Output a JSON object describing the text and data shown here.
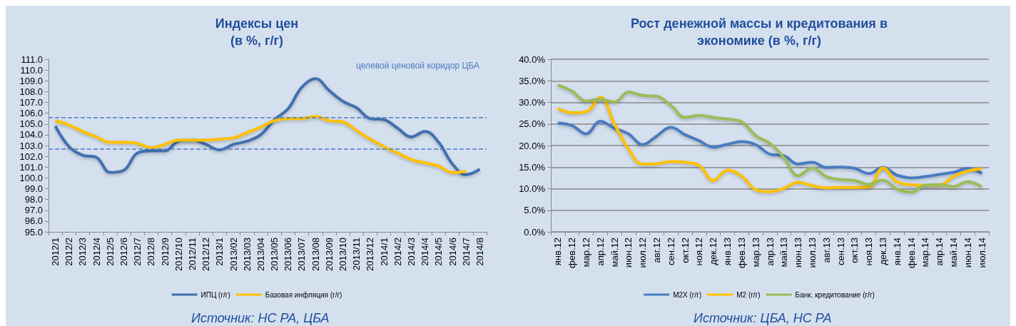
{
  "chart_data": [
    {
      "type": "line",
      "title": "Индексы цен\n(в %, г/г)",
      "categories": [
        "2012/1",
        "2012/2",
        "2012/3",
        "2012/4",
        "2012/5",
        "2012/6",
        "2012/7",
        "2012/8",
        "2012/9",
        "2012/10",
        "2012/11",
        "2012/12",
        "2013/1",
        "2013/02",
        "2013/03",
        "2013/04",
        "2013/05",
        "2013/06",
        "2013/07",
        "2013/08",
        "2013/09",
        "2013/10",
        "2013/11",
        "2013/12",
        "2014/1",
        "2014/2",
        "2014/3",
        "2014/4",
        "2014/5",
        "2014/6",
        "2014/7",
        "2014/8"
      ],
      "series": [
        {
          "name": "ИПЦ (г/г)",
          "color": "#3f6fae",
          "values": [
            104.8,
            102.9,
            102.1,
            101.9,
            100.5,
            100.7,
            102.3,
            102.5,
            102.5,
            103.4,
            103.5,
            103.1,
            102.6,
            103.1,
            103.4,
            104.0,
            105.4,
            106.4,
            108.4,
            109.2,
            108.1,
            107.1,
            106.5,
            105.5,
            105.4,
            104.6,
            103.8,
            104.3,
            103.3,
            101.3,
            100.3,
            100.8
          ]
        },
        {
          "name": "Базовая инфляция (г/г)",
          "color": "#ffc000",
          "values": [
            105.3,
            104.9,
            104.3,
            103.8,
            103.3,
            103.3,
            103.2,
            102.8,
            103.1,
            103.5,
            103.5,
            103.5,
            103.6,
            103.7,
            104.2,
            104.7,
            105.3,
            105.5,
            105.5,
            105.7,
            105.3,
            105.2,
            104.4,
            103.6,
            102.9,
            102.3,
            101.7,
            101.4,
            101.1,
            100.5,
            100.6,
            null
          ]
        }
      ],
      "ylim": [
        95,
        111
      ],
      "yticks": [
        {
          "value": 95,
          "label": "95.0"
        },
        {
          "value": 96,
          "label": "96.0"
        },
        {
          "value": 97,
          "label": "97.0"
        },
        {
          "value": 98,
          "label": "98.0"
        },
        {
          "value": 99,
          "label": "99.0"
        },
        {
          "value": 100,
          "label": "100.0"
        },
        {
          "value": 101,
          "label": "101.0"
        },
        {
          "value": 102,
          "label": "102.0"
        },
        {
          "value": 103,
          "label": "103.0"
        },
        {
          "value": 104,
          "label": "104.0"
        },
        {
          "value": 105,
          "label": "105.0"
        },
        {
          "value": 106,
          "label": "106.0"
        },
        {
          "value": 107,
          "label": "107.0"
        },
        {
          "value": 108,
          "label": "108.0"
        },
        {
          "value": 109,
          "label": "109.0"
        },
        {
          "value": 110,
          "label": "110.0"
        },
        {
          "value": 111,
          "label": "111.0"
        }
      ],
      "ref_lines": [
        {
          "axis": "y",
          "value": 105.6,
          "color": "#4a7cc0",
          "line_style": "dashed"
        },
        {
          "axis": "y",
          "value": 102.7,
          "color": "#4a7cc0",
          "line_style": "dashed"
        }
      ],
      "annotations": [
        "целевой ценовой коридор ЦБА",
        "Источник: НС РА, ЦБА"
      ],
      "grid": false,
      "legend": "bottom",
      "marker": "none",
      "line_style": "solid"
    },
    {
      "type": "line",
      "title": "Рост денежной массы и кредитования в\nэкономике (в %, г/г)",
      "categories": [
        "янв.12",
        "фев.12",
        "мар.12",
        "апр.12",
        "май.12",
        "июн.12",
        "июл.12",
        "авг.12",
        "сен.12",
        "окт.12",
        "ноя.12",
        "дек.12",
        "янв.13",
        "фев.13",
        "мар.13",
        "апр.13",
        "май.13",
        "июн.13",
        "июл.13",
        "авг.13",
        "сен.13",
        "окт.13",
        "ноя.13",
        "дек.13",
        "янв.14",
        "фев.14",
        "мар.14",
        "апр.14",
        "май.14",
        "июн.14",
        "июл.14"
      ],
      "series": [
        {
          "name": "M2X (г/г)",
          "color": "#4a7cc0",
          "values": [
            25.2,
            24.6,
            22.7,
            25.6,
            24.0,
            22.7,
            20.2,
            22.2,
            24.2,
            22.5,
            21.1,
            19.6,
            20.3,
            20.9,
            20.2,
            18.0,
            17.6,
            15.7,
            16.1,
            14.9,
            15.0,
            14.7,
            13.5,
            14.9,
            13.1,
            12.5,
            12.8,
            13.3,
            13.8,
            14.7,
            13.5
          ]
        },
        {
          "name": "M2 (г/г)",
          "color": "#ffc000",
          "values": [
            28.6,
            27.6,
            27.8,
            31.2,
            25.0,
            19.2,
            15.7,
            15.8,
            16.3,
            16.1,
            15.4,
            11.9,
            14.3,
            12.9,
            9.8,
            9.3,
            10.1,
            11.5,
            10.7,
            10.2,
            10.3,
            10.3,
            10.4,
            14.8,
            11.6,
            10.9,
            10.8,
            10.8,
            12.8,
            14.1,
            14.6
          ]
        },
        {
          "name": "Банк. кредитование (г/г)",
          "color": "#9bbb59",
          "values": [
            34.0,
            32.6,
            30.3,
            30.7,
            30.1,
            32.4,
            31.6,
            31.4,
            29.3,
            26.5,
            27.0,
            26.5,
            26.1,
            25.5,
            22.3,
            20.5,
            17.2,
            13.0,
            14.8,
            12.8,
            12.1,
            11.9,
            11.0,
            12.0,
            9.9,
            9.2,
            10.8,
            10.9,
            10.5,
            11.6,
            10.4
          ]
        }
      ],
      "ylim": [
        0,
        40
      ],
      "yticks": [
        {
          "value": 0,
          "label": "0.0%"
        },
        {
          "value": 5,
          "label": "5.0%"
        },
        {
          "value": 10,
          "label": "10.0%"
        },
        {
          "value": 15,
          "label": "15.0%"
        },
        {
          "value": 20,
          "label": "20.0%"
        },
        {
          "value": 25,
          "label": "25.0%"
        },
        {
          "value": 30,
          "label": "30.0%"
        },
        {
          "value": 35,
          "label": "35.0%"
        },
        {
          "value": 40,
          "label": "40.0%"
        }
      ],
      "annotations": [
        "Источник: ЦБА, НС РА"
      ],
      "grid": "y",
      "legend": "bottom",
      "marker": "none",
      "line_style": "solid"
    }
  ]
}
